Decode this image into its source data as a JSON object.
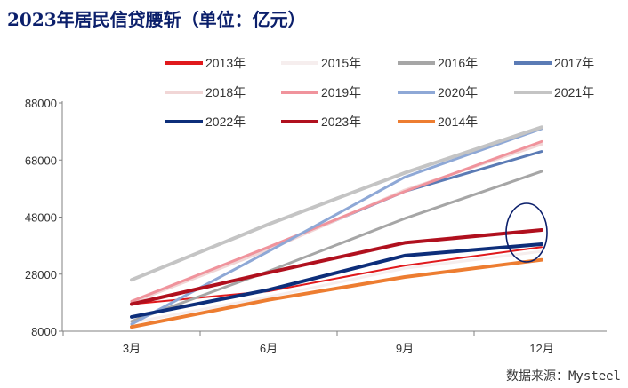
{
  "header": {
    "title": "2023年居民信贷腰斩（单位：亿元）"
  },
  "footer": {
    "source": "数据来源：Mysteel"
  },
  "chart_data": {
    "type": "line",
    "title": "2023年居民信贷腰斩（单位：亿元）",
    "categories": [
      "3月",
      "6月",
      "9月",
      "12月"
    ],
    "ylim": [
      8000,
      88000
    ],
    "yticks": [
      8000,
      28000,
      48000,
      68000,
      88000
    ],
    "ytick_labels": [
      "8000",
      "28000",
      "48000",
      "68000",
      "88000"
    ],
    "grid": false,
    "legend_position": "top",
    "series": [
      {
        "name": "2013年",
        "color": "#e0191c",
        "width": 2,
        "values": [
          17500,
          22000,
          31000,
          37500
        ]
      },
      {
        "name": "2015年",
        "color": "#f6eeee",
        "width": 3,
        "values": [
          11000,
          20000,
          30000,
          36000
        ]
      },
      {
        "name": "2016年",
        "color": "#a6a6a6",
        "width": 3,
        "values": [
          11500,
          29000,
          47500,
          64000
        ]
      },
      {
        "name": "2017年",
        "color": "#5b7bb5",
        "width": 3,
        "values": [
          18000,
          37000,
          57000,
          71000
        ]
      },
      {
        "name": "2018年",
        "color": "#f1d6d6",
        "width": 3,
        "values": [
          18000,
          36500,
          57500,
          73500
        ]
      },
      {
        "name": "2019年",
        "color": "#f0939c",
        "width": 3,
        "values": [
          18500,
          37500,
          57000,
          74500
        ]
      },
      {
        "name": "2020年",
        "color": "#8ea8d6",
        "width": 3,
        "values": [
          10500,
          36000,
          62000,
          79000
        ]
      },
      {
        "name": "2021年",
        "color": "#c4c4c4",
        "width": 4,
        "values": [
          26000,
          45500,
          63500,
          79500
        ]
      },
      {
        "name": "2022年",
        "color": "#0d2e7a",
        "width": 4,
        "values": [
          13000,
          22500,
          34500,
          38500
        ]
      },
      {
        "name": "2023年",
        "color": "#b0101e",
        "width": 4,
        "values": [
          17500,
          28500,
          39000,
          43500
        ]
      },
      {
        "name": "2014年",
        "color": "#ed7d31",
        "width": 4,
        "values": [
          9500,
          19000,
          27000,
          33000
        ]
      }
    ]
  }
}
